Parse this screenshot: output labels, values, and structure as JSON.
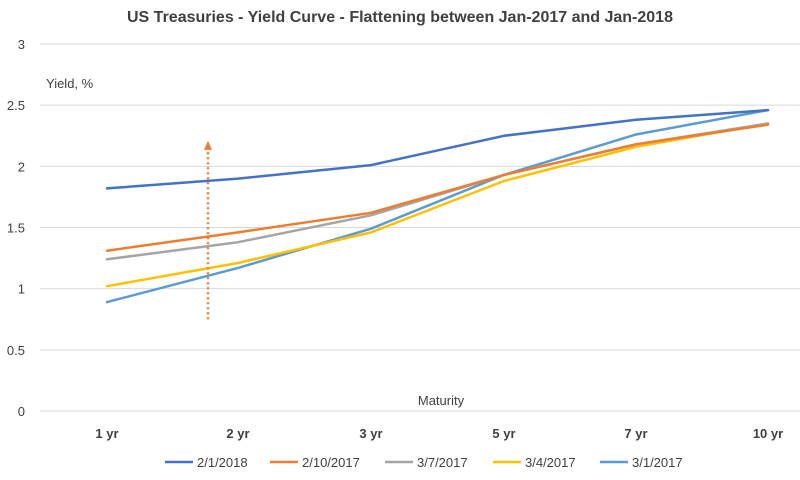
{
  "chart_data": {
    "type": "line",
    "title": "US Treasuries - Yield Curve - Flattening between Jan-2017 and Jan-2018",
    "xlabel": "Maturity",
    "ylabel": "Yield, %",
    "categories": [
      "1 yr",
      "2 yr",
      "3 yr",
      "5 yr",
      "7 yr",
      "10 yr"
    ],
    "ylim": [
      0,
      3
    ],
    "yticks": [
      "0",
      "0.5",
      "1",
      "1.5",
      "2",
      "2.5",
      "3"
    ],
    "grid": true,
    "legend_position": "bottom",
    "series": [
      {
        "name": "2/1/2018",
        "color": "#4472c4",
        "values": [
          1.82,
          1.9,
          2.01,
          2.25,
          2.38,
          2.46
        ]
      },
      {
        "name": "2/10/2017",
        "color": "#ed7d31",
        "values": [
          1.31,
          1.46,
          1.62,
          1.93,
          2.18,
          2.34
        ]
      },
      {
        "name": "3/7/2017",
        "color": "#a5a5a5",
        "values": [
          1.24,
          1.38,
          1.6,
          1.93,
          2.18,
          2.35
        ]
      },
      {
        "name": "3/4/2017",
        "color": "#ffc000",
        "values": [
          1.02,
          1.21,
          1.46,
          1.88,
          2.16,
          2.35
        ]
      },
      {
        "name": "3/1/2017",
        "color": "#5b9bd5",
        "values": [
          0.89,
          1.17,
          1.49,
          1.93,
          2.26,
          2.46
        ]
      }
    ],
    "annotation": {
      "type": "dotted-up-arrow",
      "color": "#ed7d31",
      "x_category": "2 yr",
      "y_from": 0.75,
      "y_to": 2.2
    }
  }
}
